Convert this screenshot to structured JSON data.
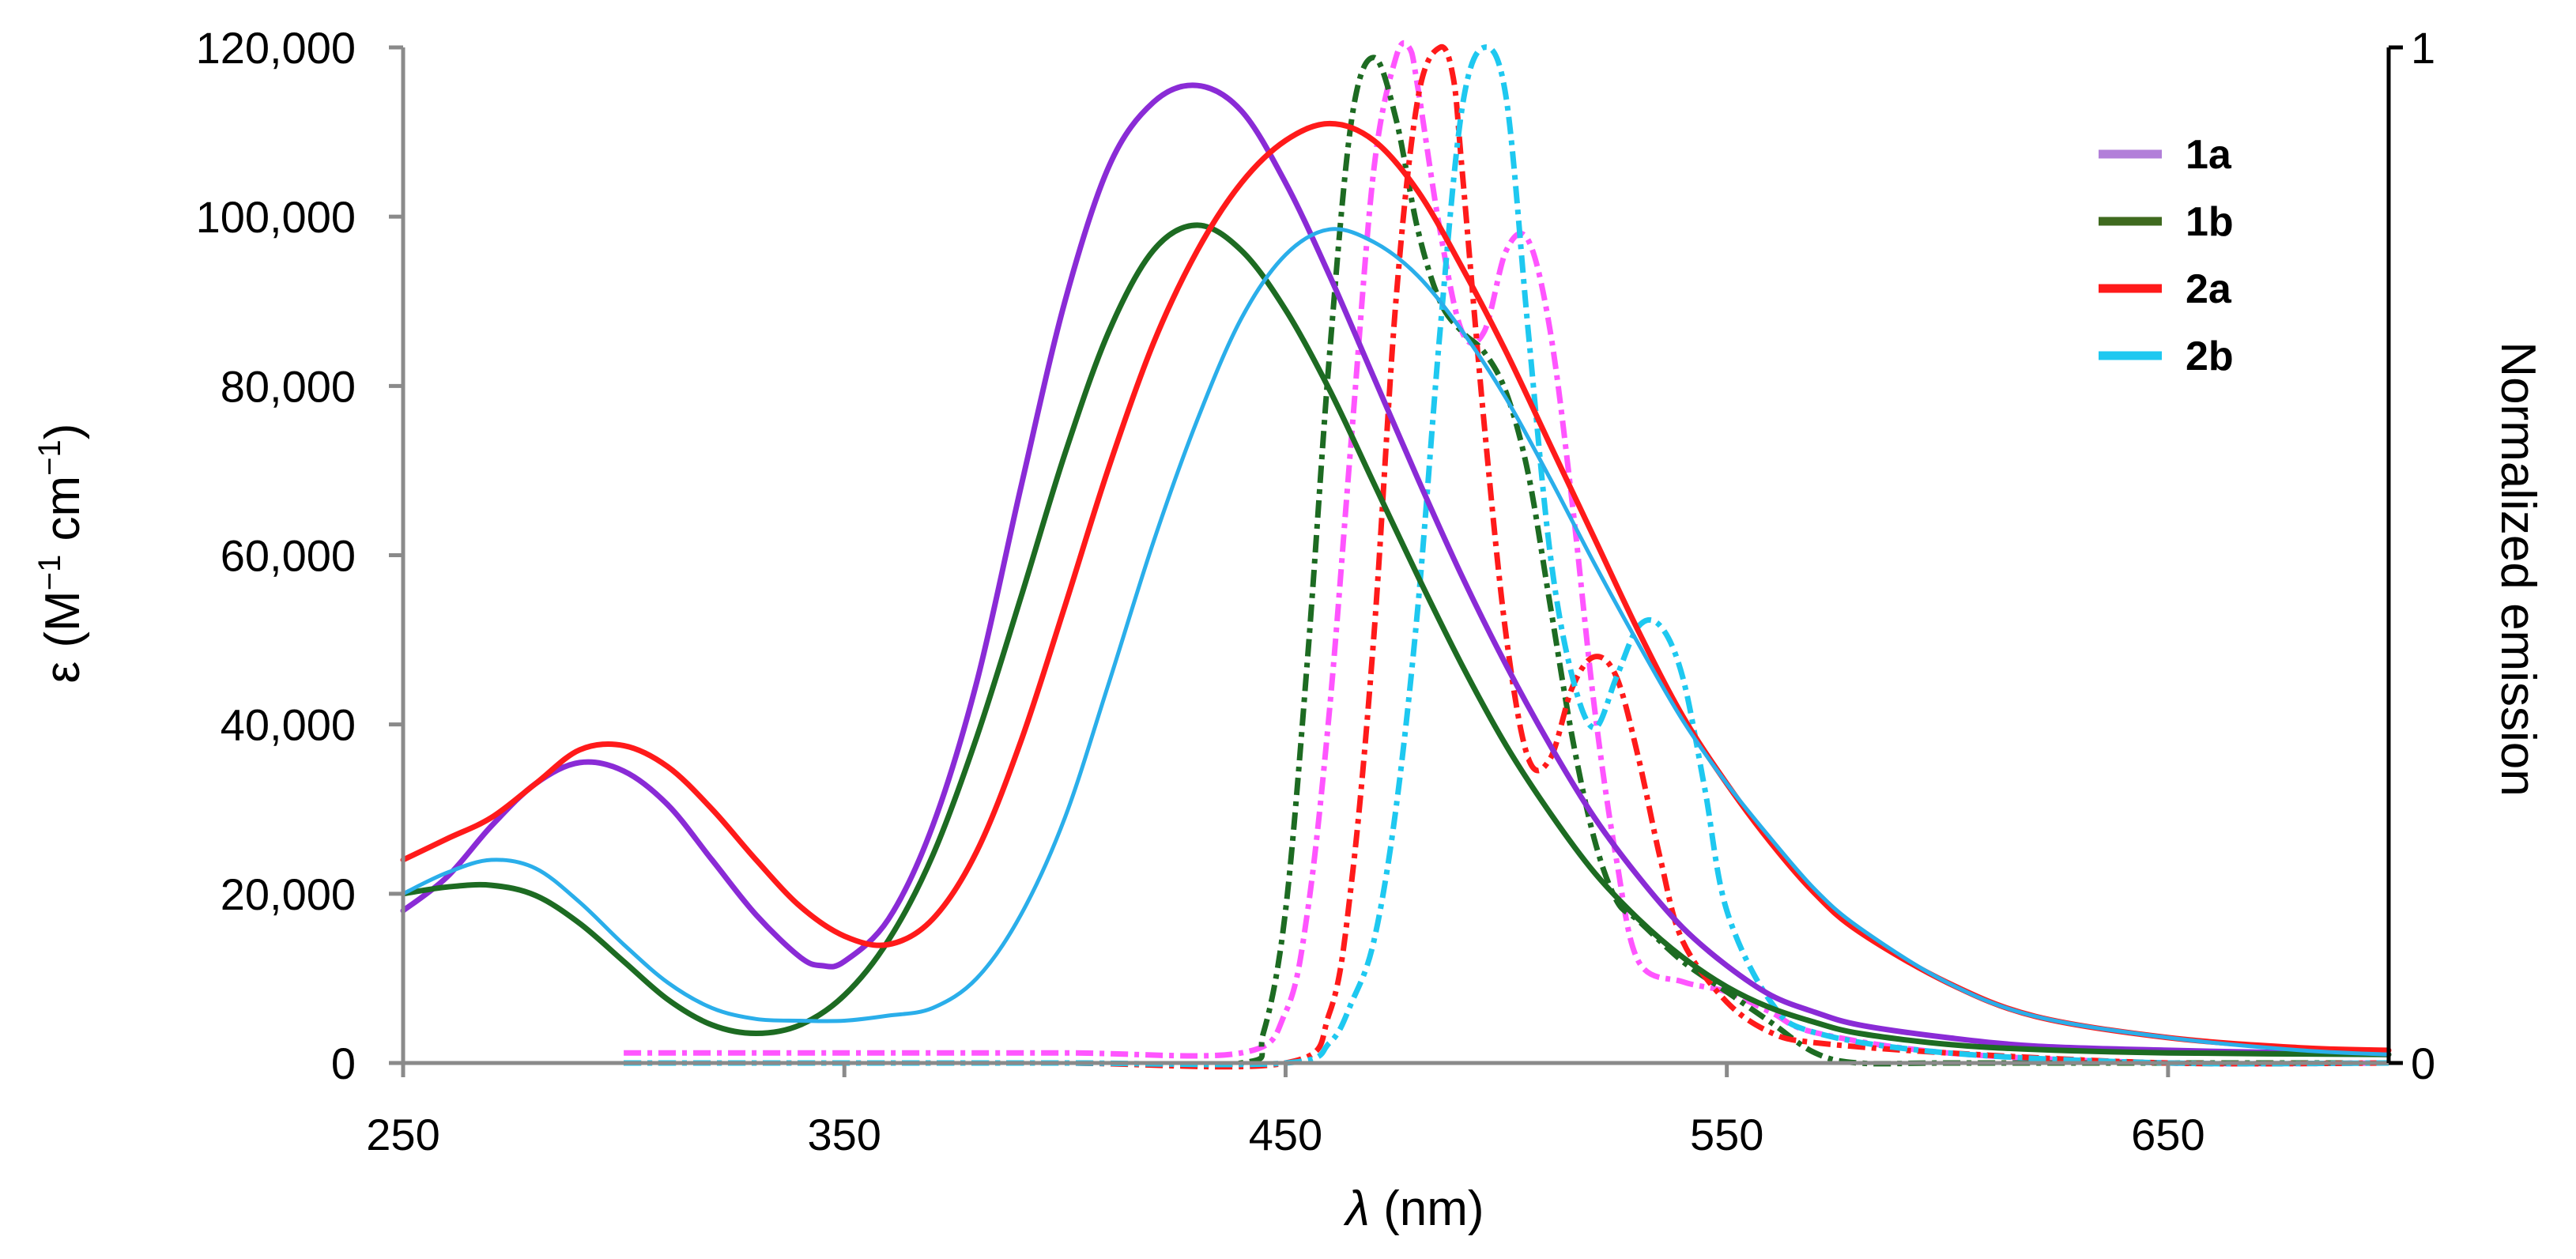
{
  "chart_data": {
    "type": "line",
    "x_label": "λ (nm)",
    "x_label_var": "λ",
    "x_label_unit": " (nm)",
    "y_left_label_prefix": "ε (M",
    "y_left_label_sup1": "−1",
    "y_left_label_mid": " cm",
    "y_left_label_sup2": "−1",
    "y_left_label_suffix": ")",
    "y_right_label": "Normalized emission",
    "xlim": [
      250,
      700
    ],
    "ylim_left": [
      0,
      120000
    ],
    "ylim_right": [
      0,
      1
    ],
    "x_ticks": [
      250,
      350,
      450,
      550,
      650
    ],
    "x_tick_labels": [
      "250",
      "350",
      "450",
      "550",
      "650"
    ],
    "y_left_ticks": [
      0,
      20000,
      40000,
      60000,
      80000,
      100000,
      120000
    ],
    "y_left_tick_labels": [
      "0",
      "20,000",
      "40,000",
      "60,000",
      "80,000",
      "100,000",
      "120,000"
    ],
    "y_right_ticks": [
      0,
      1
    ],
    "y_right_tick_labels": [
      "0",
      "1"
    ],
    "legend": [
      {
        "label": "1a",
        "color": "#b27fd9"
      },
      {
        "label": "1b",
        "color": "#3f6a1f"
      },
      {
        "label": "2a",
        "color": "#ff1a1a"
      },
      {
        "label": "2b",
        "color": "#1ec8f0"
      }
    ],
    "absorption_series": [
      {
        "name": "1a absorption",
        "color": "#8a2bd6",
        "x": [
          250,
          260,
          270,
          280,
          290,
          300,
          310,
          320,
          330,
          340,
          345,
          350,
          360,
          370,
          380,
          390,
          400,
          410,
          420,
          430,
          440,
          450,
          460,
          470,
          480,
          490,
          500,
          510,
          520,
          530,
          540,
          550,
          560,
          570,
          580,
          600,
          620,
          650,
          680,
          700
        ],
        "y": [
          18000,
          22000,
          28000,
          33000,
          35500,
          34500,
          30500,
          24000,
          17500,
          12500,
          11500,
          12000,
          17000,
          28000,
          45000,
          68000,
          90000,
          106000,
          113500,
          115500,
          112500,
          104000,
          93000,
          81000,
          69000,
          57500,
          47000,
          37500,
          29000,
          22000,
          16000,
          11500,
          8000,
          6000,
          4500,
          3000,
          2000,
          1500,
          1200,
          1000
        ]
      },
      {
        "name": "1b absorption",
        "color": "#1d6b22",
        "x": [
          250,
          260,
          270,
          280,
          290,
          300,
          310,
          320,
          330,
          340,
          350,
          360,
          370,
          380,
          390,
          400,
          410,
          420,
          430,
          440,
          450,
          460,
          470,
          480,
          490,
          500,
          510,
          520,
          530,
          540,
          550,
          560,
          570,
          580,
          600,
          620,
          650,
          700
        ],
        "y": [
          20000,
          20800,
          21000,
          19800,
          16500,
          12000,
          7500,
          4500,
          3500,
          4500,
          8000,
          14500,
          24500,
          38500,
          55000,
          72000,
          86500,
          96000,
          99000,
          96000,
          89000,
          79500,
          68500,
          57500,
          47000,
          37500,
          29500,
          22500,
          17000,
          12500,
          9000,
          6500,
          4800,
          3500,
          2200,
          1600,
          1200,
          1000
        ]
      },
      {
        "name": "2a absorption",
        "color": "#ff1a1a",
        "x": [
          250,
          260,
          270,
          280,
          290,
          300,
          310,
          320,
          330,
          340,
          350,
          360,
          370,
          380,
          390,
          400,
          410,
          420,
          430,
          440,
          450,
          460,
          470,
          480,
          490,
          500,
          510,
          520,
          530,
          540,
          550,
          560,
          570,
          580,
          600,
          620,
          650,
          680,
          700
        ],
        "y": [
          24000,
          26500,
          29000,
          33000,
          37000,
          37500,
          35000,
          30000,
          24000,
          18500,
          15000,
          14000,
          17000,
          25000,
          38000,
          54000,
          70500,
          85000,
          96000,
          104000,
          109000,
          111000,
          109000,
          103000,
          94000,
          84000,
          73000,
          62000,
          51000,
          41000,
          33000,
          26000,
          20000,
          15500,
          9500,
          5500,
          3000,
          1800,
          1500
        ]
      },
      {
        "name": "2b absorption",
        "color": "#2aaeea",
        "x": [
          250,
          260,
          270,
          280,
          290,
          300,
          310,
          320,
          330,
          340,
          350,
          360,
          370,
          380,
          390,
          400,
          410,
          420,
          430,
          440,
          450,
          460,
          470,
          480,
          490,
          500,
          510,
          520,
          530,
          540,
          550,
          560,
          570,
          580,
          600,
          620,
          650,
          680,
          700
        ],
        "y": [
          20000,
          22500,
          24000,
          23000,
          19000,
          14000,
          9500,
          6500,
          5200,
          5000,
          5000,
          5600,
          6500,
          10000,
          17500,
          29000,
          45000,
          61500,
          76000,
          88000,
          95500,
          98500,
          97000,
          93000,
          86500,
          78500,
          69000,
          59000,
          49500,
          40500,
          33000,
          26500,
          20500,
          16000,
          9500,
          5500,
          3000,
          1500,
          1000
        ]
      }
    ],
    "emission_series": [
      {
        "name": "1a emission",
        "color": "#ff55ff",
        "x": [
          300,
          350,
          400,
          440,
          450,
          455,
          460,
          465,
          470,
          475,
          478,
          480,
          485,
          490,
          495,
          500,
          505,
          510,
          515,
          520,
          525,
          530,
          540,
          550,
          560,
          570,
          600,
          650,
          700
        ],
        "y": [
          0.01,
          0.01,
          0.01,
          0.01,
          0.05,
          0.15,
          0.35,
          0.62,
          0.88,
          0.99,
          1.0,
          0.96,
          0.82,
          0.72,
          0.72,
          0.8,
          0.81,
          0.72,
          0.55,
          0.35,
          0.2,
          0.1,
          0.08,
          0.07,
          0.05,
          0.03,
          0.01,
          0.0,
          0.0
        ]
      },
      {
        "name": "1b emission",
        "color": "#1d6b22",
        "x": [
          300,
          350,
          400,
          440,
          445,
          450,
          455,
          460,
          465,
          470,
          475,
          480,
          485,
          490,
          495,
          500,
          505,
          510,
          515,
          520,
          525,
          530,
          540,
          550,
          560,
          570,
          580,
          600,
          650,
          690
        ],
        "y": [
          0.0,
          0.0,
          0.0,
          0.0,
          0.03,
          0.15,
          0.4,
          0.7,
          0.93,
          0.99,
          0.93,
          0.82,
          0.75,
          0.72,
          0.7,
          0.66,
          0.58,
          0.45,
          0.32,
          0.22,
          0.16,
          0.14,
          0.1,
          0.07,
          0.04,
          0.01,
          0.0,
          0.0,
          0.0,
          0.0
        ]
      },
      {
        "name": "2a emission",
        "color": "#ff1a1a",
        "x": [
          300,
          350,
          400,
          450,
          460,
          465,
          470,
          475,
          480,
          485,
          488,
          490,
          495,
          500,
          505,
          510,
          515,
          520,
          525,
          530,
          535,
          540,
          550,
          560,
          570,
          600,
          650,
          700
        ],
        "y": [
          0.0,
          0.0,
          0.0,
          0.0,
          0.05,
          0.18,
          0.42,
          0.75,
          0.95,
          1.0,
          0.97,
          0.88,
          0.63,
          0.42,
          0.3,
          0.3,
          0.37,
          0.4,
          0.38,
          0.3,
          0.2,
          0.12,
          0.06,
          0.03,
          0.02,
          0.01,
          0.0,
          0.0
        ]
      },
      {
        "name": "2b emission",
        "color": "#1ec8f0",
        "x": [
          300,
          350,
          400,
          450,
          460,
          465,
          470,
          475,
          480,
          485,
          490,
          495,
          500,
          505,
          510,
          515,
          520,
          525,
          530,
          535,
          540,
          545,
          550,
          560,
          570,
          600,
          650,
          700
        ],
        "y": [
          0.0,
          0.0,
          0.0,
          0.0,
          0.02,
          0.06,
          0.12,
          0.25,
          0.45,
          0.72,
          0.94,
          1.0,
          0.95,
          0.72,
          0.5,
          0.38,
          0.33,
          0.38,
          0.43,
          0.43,
          0.38,
          0.27,
          0.15,
          0.06,
          0.03,
          0.01,
          0.0,
          0.0
        ]
      }
    ]
  }
}
